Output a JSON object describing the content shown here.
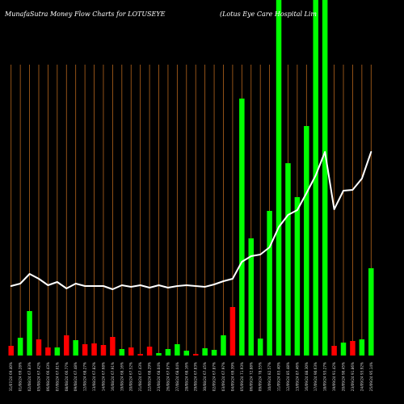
{
  "title_left": "MunafaSutra  Money Flow  Charts for LOTUSEYE",
  "title_right": "(Lotus Eye    Care    Hospital Lim",
  "colors": {
    "background": "#000000",
    "grid": "#b5651d",
    "up": "#00ff00",
    "down": "#ff0000",
    "line": "#ffffff"
  },
  "chart_data": {
    "type": "bar",
    "title": "MunafaSutra  Money Flow  Charts for LOTUSEYE",
    "subtitle": "(Lotus Eye    Care    Hospital Lim",
    "xlabel": "",
    "ylabel": "",
    "ylim": [
      0,
      440
    ],
    "grid": true,
    "categories": [
      "31/07/24 69.40%",
      "01/08/24 69.28%",
      "02/08/24 67.83%",
      "05/08/24 67.42%",
      "06/08/24 66.43%",
      "07/08/24 67.01%",
      "08/08/24 66.77%",
      "09/08/24 67.48%",
      "12/08/24 68.27%",
      "13/08/24 67.82%",
      "14/08/24 67.68%",
      "16/08/24 67.91%",
      "19/08/24 68.16%",
      "20/08/24 67.52%",
      "21/08/24 67.43%",
      "22/08/24 68.29%",
      "23/08/24 68.04%",
      "26/08/24 67.67%",
      "27/08/24 68.04%",
      "28/08/24 68.16%",
      "29/08/24 67.83%",
      "30/08/24 67.45%",
      "02/09/24 67.87%",
      "03/09/24 67.97%",
      "04/09/24 69.39%",
      "05/09/24 71.93%",
      "06/09/24 72.88%",
      "09/09/24 78.55%",
      "10/09/24 82.57%",
      "11/09/24 83.40%",
      "12/09/24 85.48%",
      "13/09/24 87.46%",
      "16/09/24 88.30%",
      "17/09/24 90.63%",
      "18/09/24 93.27%",
      "19/09/24 91.42%",
      "20/09/24 90.45%",
      "23/09/24 91.86%",
      "24/09/24 93.92%",
      "25/09/24 95.14%"
    ],
    "values": [
      12,
      22,
      55,
      20,
      10,
      10,
      25,
      19,
      14,
      15,
      13,
      23,
      8,
      10,
      2,
      11,
      3,
      8,
      14,
      6,
      2,
      9,
      7,
      25,
      60,
      318,
      145,
      21,
      179,
      450,
      238,
      196,
      284,
      450,
      450,
      12,
      16,
      18,
      20,
      108
    ],
    "flow": [
      "down",
      "up",
      "up",
      "down",
      "down",
      "up",
      "down",
      "up",
      "down",
      "down",
      "down",
      "down",
      "up",
      "down",
      "down",
      "down",
      "up",
      "up",
      "up",
      "up",
      "down",
      "up",
      "up",
      "up",
      "down",
      "up",
      "up",
      "up",
      "up",
      "up",
      "up",
      "up",
      "up",
      "up",
      "up",
      "down",
      "up",
      "down",
      "up",
      "up"
    ],
    "line": [
      86,
      89,
      101,
      95,
      87,
      91,
      83,
      89,
      86,
      86,
      86,
      82,
      87,
      85,
      87,
      84,
      87,
      84,
      86,
      87,
      86,
      85,
      88,
      92,
      95,
      116,
      123,
      125,
      134,
      159,
      174,
      180,
      201,
      223,
      252,
      181,
      204,
      205,
      219,
      252
    ],
    "line_range": [
      0,
      440
    ],
    "legend": "none"
  }
}
